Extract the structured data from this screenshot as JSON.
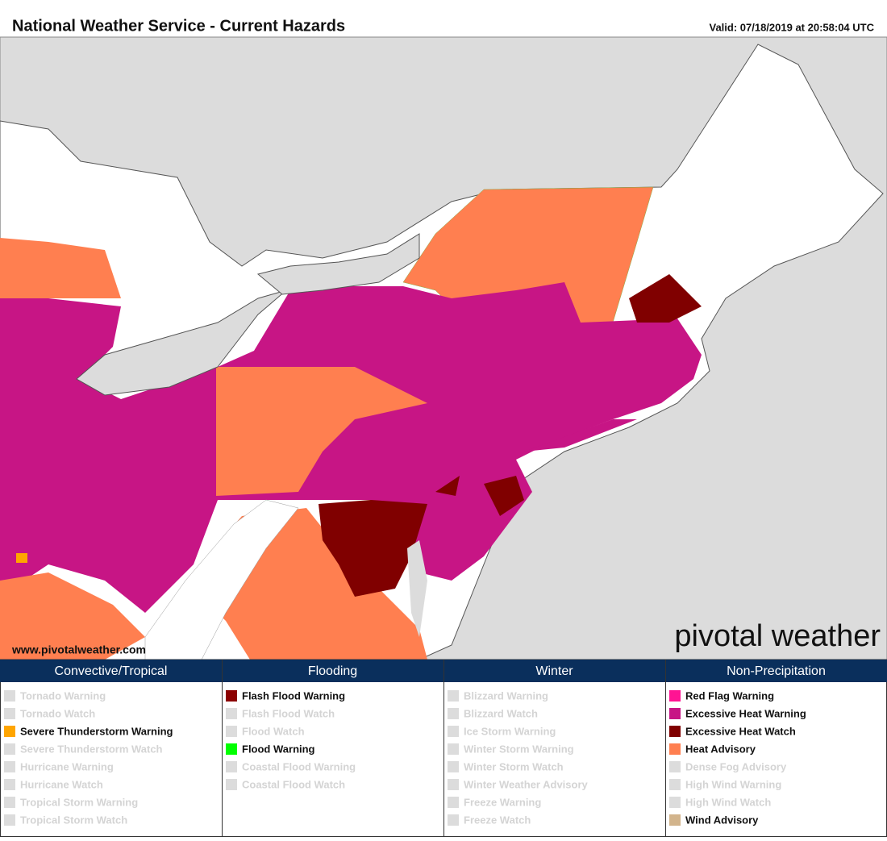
{
  "header": {
    "title": "National Weather Service - Current Hazards",
    "valid": "Valid: 07/18/2019 at 20:58:04 UTC"
  },
  "map": {
    "watermark": "www.pivotalweather.com",
    "logo": "pivotal weather"
  },
  "legend": [
    {
      "title": "Convective/Tropical",
      "items": [
        {
          "label": "Tornado Warning",
          "active": false
        },
        {
          "label": "Tornado Watch",
          "active": false
        },
        {
          "label": "Severe Thunderstorm Warning",
          "active": true,
          "color": "#ffa500"
        },
        {
          "label": "Severe Thunderstorm Watch",
          "active": false
        },
        {
          "label": "Hurricane Warning",
          "active": false
        },
        {
          "label": "Hurricane Watch",
          "active": false
        },
        {
          "label": "Tropical Storm Warning",
          "active": false
        },
        {
          "label": "Tropical Storm Watch",
          "active": false
        }
      ]
    },
    {
      "title": "Flooding",
      "items": [
        {
          "label": "Flash Flood Warning",
          "active": true,
          "color": "#8b0000"
        },
        {
          "label": "Flash Flood Watch",
          "active": false
        },
        {
          "label": "Flood Watch",
          "active": false
        },
        {
          "label": "Flood Warning",
          "active": true,
          "color": "#00ff00"
        },
        {
          "label": "Coastal Flood Warning",
          "active": false
        },
        {
          "label": "Coastal Flood Watch",
          "active": false
        }
      ]
    },
    {
      "title": "Winter",
      "items": [
        {
          "label": "Blizzard Warning",
          "active": false
        },
        {
          "label": "Blizzard Watch",
          "active": false
        },
        {
          "label": "Ice Storm Warning",
          "active": false
        },
        {
          "label": "Winter Storm Warning",
          "active": false
        },
        {
          "label": "Winter Storm Watch",
          "active": false
        },
        {
          "label": "Winter Weather Advisory",
          "active": false
        },
        {
          "label": "Freeze Warning",
          "active": false
        },
        {
          "label": "Freeze Watch",
          "active": false
        }
      ]
    },
    {
      "title": "Non-Precipitation",
      "items": [
        {
          "label": "Red Flag Warning",
          "active": true,
          "color": "#ff1493"
        },
        {
          "label": "Excessive Heat Warning",
          "active": true,
          "color": "#c71585"
        },
        {
          "label": "Excessive Heat Watch",
          "active": true,
          "color": "#800000"
        },
        {
          "label": "Heat Advisory",
          "active": true,
          "color": "#ff7f50"
        },
        {
          "label": "Dense Fog Advisory",
          "active": false
        },
        {
          "label": "High Wind Warning",
          "active": false
        },
        {
          "label": "High Wind Watch",
          "active": false
        },
        {
          "label": "Wind Advisory",
          "active": true,
          "color": "#d2b48c"
        }
      ]
    }
  ]
}
